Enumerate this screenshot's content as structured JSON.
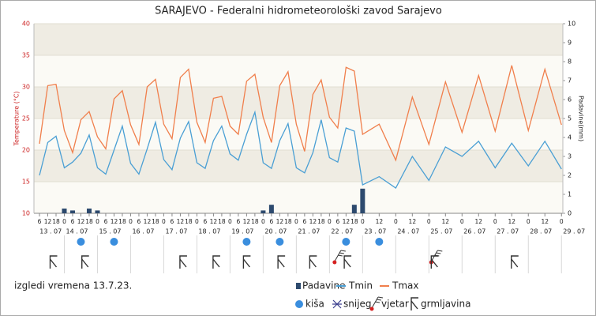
{
  "chart_data": {
    "type": "line",
    "title": "SARAJEVO - Federalni hidrometeorološki zavod Sarajevo",
    "note": "izgledi vremena 13.7.23.",
    "ylabel": "Temperature (°C)",
    "y2label": "Padavine(mm)",
    "xlim": [
      2,
      385
    ],
    "ylim": [
      10,
      40
    ],
    "yticks": [
      10,
      15,
      20,
      25,
      30,
      35,
      40
    ],
    "y2lim": [
      0,
      10
    ],
    "y2ticks": [
      0,
      1,
      2,
      3,
      4,
      5,
      6,
      7,
      8,
      9,
      10
    ],
    "xticks": [
      6,
      12,
      18,
      {
        "value": 24,
        "label": "0"
      },
      {
        "value": 30,
        "label": "6"
      },
      {
        "value": 36,
        "label": "12"
      },
      {
        "value": 42,
        "label": "18"
      },
      {
        "value": 48,
        "label": "0"
      },
      {
        "value": 54,
        "label": "6"
      },
      {
        "value": 60,
        "label": "12"
      },
      {
        "value": 66,
        "label": "18"
      },
      {
        "value": 72,
        "label": "0"
      },
      {
        "value": 78,
        "label": "6"
      },
      {
        "value": 84,
        "label": "12"
      },
      {
        "value": 90,
        "label": "18"
      },
      {
        "value": 96,
        "label": "0"
      },
      {
        "value": 102,
        "label": "6"
      },
      {
        "value": 108,
        "label": "12"
      },
      {
        "value": 114,
        "label": "18"
      },
      {
        "value": 120,
        "label": "0"
      },
      {
        "value": 126,
        "label": "6"
      },
      {
        "value": 132,
        "label": "12"
      },
      {
        "value": 138,
        "label": "18"
      },
      {
        "value": 144,
        "label": "0"
      },
      {
        "value": 150,
        "label": "6"
      },
      {
        "value": 156,
        "label": "12"
      },
      {
        "value": 162,
        "label": "18"
      },
      {
        "value": 168,
        "label": "0"
      },
      {
        "value": 174,
        "label": "6"
      },
      {
        "value": 180,
        "label": "12"
      },
      {
        "value": 186,
        "label": "18"
      },
      {
        "value": 192,
        "label": "0"
      },
      {
        "value": 198,
        "label": "6"
      },
      {
        "value": 204,
        "label": "12"
      },
      {
        "value": 210,
        "label": "18"
      },
      {
        "value": 216,
        "label": "0"
      },
      {
        "value": 222,
        "label": "6"
      },
      {
        "value": 228,
        "label": "12"
      },
      {
        "value": 234,
        "label": "18"
      },
      {
        "value": 240,
        "label": "0"
      },
      {
        "value": 252,
        "label": "12"
      },
      {
        "value": 264,
        "label": "0"
      },
      {
        "value": 276,
        "label": "12"
      },
      {
        "value": 288,
        "label": "0"
      },
      {
        "value": 300,
        "label": "12"
      },
      {
        "value": 312,
        "label": "0"
      },
      {
        "value": 324,
        "label": "12"
      },
      {
        "value": 336,
        "label": "0"
      },
      {
        "value": 348,
        "label": "12"
      },
      {
        "value": 360,
        "label": "0"
      },
      {
        "value": 372,
        "label": "12"
      },
      {
        "value": 384,
        "label": "0"
      }
    ],
    "day_labels": [
      {
        "value": 5,
        "label": "13 . 07"
      },
      {
        "value": 24,
        "label": "14 . 07"
      },
      {
        "value": 48,
        "label": "15 . 07"
      },
      {
        "value": 72,
        "label": "16 . 07"
      },
      {
        "value": 96,
        "label": "17 . 07"
      },
      {
        "value": 120,
        "label": "18 . 07"
      },
      {
        "value": 144,
        "label": "19 . 07"
      },
      {
        "value": 168,
        "label": "20 . 07"
      },
      {
        "value": 192,
        "label": "21 . 07"
      },
      {
        "value": 216,
        "label": "22 . 07"
      },
      {
        "value": 240,
        "label": "23 . 07"
      },
      {
        "value": 264,
        "label": "24 . 07"
      },
      {
        "value": 288,
        "label": "25 . 07"
      },
      {
        "value": 312,
        "label": "26 . 07"
      },
      {
        "value": 336,
        "label": "27 . 07"
      },
      {
        "value": 360,
        "label": "28 . 07"
      },
      {
        "value": 384,
        "label": "29 . 07"
      }
    ],
    "series": [
      {
        "name": "Padavine",
        "type": "bar",
        "axis": "y2",
        "color": "#2d4a6e",
        "x": [
          24,
          30,
          42,
          48,
          168,
          174,
          234,
          240
        ],
        "values": [
          0.25,
          0.15,
          0.25,
          0.15,
          0.15,
          0.45,
          0.45,
          1.3
        ]
      },
      {
        "name": "Tmin",
        "color": "#4a9fd4",
        "x": [
          6,
          12,
          18,
          24,
          30,
          36,
          42,
          48,
          54,
          60,
          66,
          72,
          78,
          84,
          90,
          96,
          102,
          108,
          114,
          120,
          126,
          132,
          138,
          144,
          150,
          156,
          162,
          168,
          174,
          180,
          186,
          192,
          198,
          204,
          210,
          216,
          222,
          228,
          234,
          240,
          252,
          264,
          276,
          288,
          300,
          312,
          324,
          336,
          348,
          360,
          372,
          384
        ],
        "values": [
          16,
          21.2,
          22.2,
          17.2,
          18.1,
          19.5,
          22.4,
          17.2,
          16.2,
          20,
          23.8,
          17.9,
          16.2,
          20.2,
          24.4,
          18.5,
          16.9,
          21.9,
          24.5,
          18,
          17.1,
          21.5,
          23.8,
          19.4,
          18.4,
          22.5,
          26,
          18,
          17.1,
          21.5,
          24.2,
          17.2,
          16.4,
          19.6,
          24.8,
          18.8,
          18.1,
          23.5,
          23,
          14.5,
          15.8,
          14,
          19,
          15.2,
          20.5,
          19,
          21.4,
          17.2,
          21.1,
          17.5,
          21.4,
          17
        ]
      },
      {
        "name": "Tmax",
        "color": "#f07f4c",
        "x": [
          6,
          12,
          18,
          24,
          30,
          36,
          42,
          48,
          54,
          60,
          66,
          72,
          78,
          84,
          90,
          96,
          102,
          108,
          114,
          120,
          126,
          132,
          138,
          144,
          150,
          156,
          162,
          168,
          174,
          180,
          186,
          192,
          198,
          204,
          210,
          216,
          222,
          228,
          234,
          240,
          252,
          264,
          276,
          288,
          300,
          312,
          324,
          336,
          348,
          360,
          372,
          384
        ],
        "values": [
          21,
          30.2,
          30.4,
          23.1,
          19.6,
          24.8,
          26.1,
          22.1,
          20.2,
          28.1,
          29.4,
          24,
          20.9,
          30,
          31.2,
          24.1,
          21.8,
          31.5,
          32.8,
          24.4,
          21.2,
          28.2,
          28.5,
          23.8,
          22.5,
          30.9,
          32,
          25.2,
          21.2,
          30.2,
          32.4,
          24.1,
          19.8,
          28.8,
          31.1,
          25.2,
          23.5,
          33.1,
          32.5,
          22.5,
          24.1,
          18.4,
          28.4,
          20.9,
          30.8,
          22.8,
          31.8,
          23,
          33.4,
          23.1,
          32.8,
          24
        ]
      }
    ],
    "icons": [
      {
        "name": "kiša",
        "color": "#3a8ede",
        "x": [
          36,
          60,
          156,
          180,
          228,
          252
        ]
      },
      {
        "name": "snijeg",
        "color": "#3b3f8f",
        "x": []
      },
      {
        "name": "vjetar",
        "color": "#333333",
        "x": [
          222,
          292
        ]
      },
      {
        "name": "grmljavina",
        "color": "#333333",
        "x": [
          16,
          39,
          110,
          134,
          156,
          181,
          204,
          229,
          292,
          350
        ]
      }
    ]
  }
}
